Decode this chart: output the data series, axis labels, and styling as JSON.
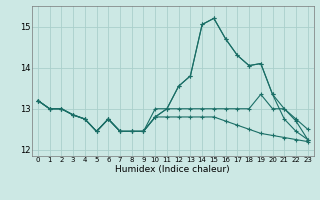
{
  "title": "",
  "xlabel": "Humidex (Indice chaleur)",
  "ylabel": "",
  "background_color": "#cce8e4",
  "grid_color": "#aacfcb",
  "line_color": "#1a6e66",
  "x_values": [
    0,
    1,
    2,
    3,
    4,
    5,
    6,
    7,
    8,
    9,
    10,
    11,
    12,
    13,
    14,
    15,
    16,
    17,
    18,
    19,
    20,
    21,
    22,
    23
  ],
  "series": [
    [
      13.2,
      13.0,
      13.0,
      12.85,
      12.75,
      12.45,
      12.75,
      12.45,
      12.45,
      12.45,
      12.8,
      13.0,
      13.55,
      13.8,
      15.05,
      15.2,
      14.7,
      14.3,
      14.05,
      14.1,
      13.35,
      13.0,
      12.75,
      12.5
    ],
    [
      13.2,
      13.0,
      13.0,
      12.85,
      12.75,
      12.45,
      12.75,
      12.45,
      12.45,
      12.45,
      13.0,
      13.0,
      13.0,
      13.0,
      13.0,
      13.0,
      13.0,
      13.0,
      13.0,
      13.35,
      13.0,
      13.0,
      12.7,
      12.25
    ],
    [
      13.2,
      13.0,
      13.0,
      12.85,
      12.75,
      12.45,
      12.75,
      12.45,
      12.45,
      12.45,
      12.8,
      12.8,
      12.8,
      12.8,
      12.8,
      12.8,
      12.7,
      12.6,
      12.5,
      12.4,
      12.35,
      12.3,
      12.25,
      12.2
    ],
    [
      13.2,
      13.0,
      13.0,
      12.85,
      12.75,
      12.45,
      12.75,
      12.45,
      12.45,
      12.45,
      12.8,
      13.0,
      13.55,
      13.8,
      15.05,
      15.2,
      14.7,
      14.3,
      14.05,
      14.1,
      13.35,
      12.75,
      12.45,
      12.25
    ]
  ],
  "ylim": [
    11.85,
    15.5
  ],
  "xlim": [
    -0.5,
    23.5
  ],
  "yticks": [
    12,
    13,
    14,
    15
  ],
  "xticks": [
    0,
    1,
    2,
    3,
    4,
    5,
    6,
    7,
    8,
    9,
    10,
    11,
    12,
    13,
    14,
    15,
    16,
    17,
    18,
    19,
    20,
    21,
    22,
    23
  ],
  "figsize": [
    3.2,
    2.0
  ],
  "dpi": 100
}
